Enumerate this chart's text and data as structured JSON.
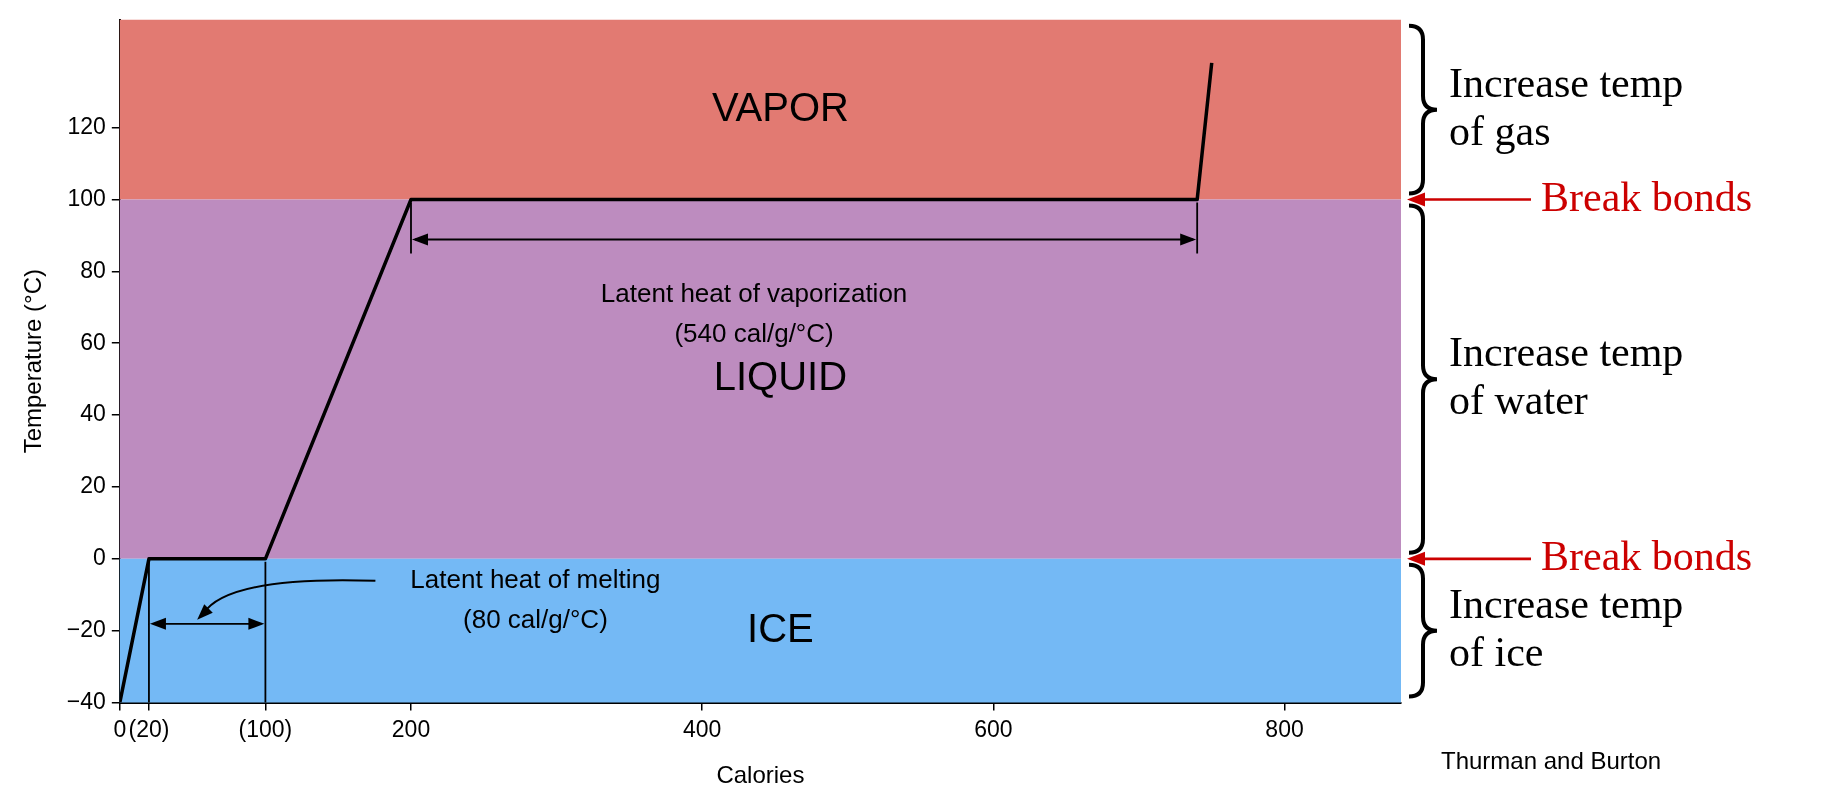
{
  "chart_data": {
    "type": "line",
    "xlabel": "Calories",
    "ylabel": "Temperature (°C)",
    "x": [
      0,
      20,
      100,
      200,
      740,
      750
    ],
    "series": [
      {
        "color": "#000000",
        "values": [
          -40,
          0,
          0,
          100,
          100,
          138
        ]
      }
    ],
    "xlim": [
      0,
      880
    ],
    "xticks": [
      0,
      {
        "value": 20,
        "label": "(20)"
      },
      {
        "value": 100,
        "label": "(100)"
      },
      200,
      400,
      600,
      800
    ],
    "ylim": [
      -40,
      150
    ],
    "yticks": [
      {
        "value": -40,
        "label": "−40"
      },
      {
        "value": -20,
        "label": "−20"
      },
      0,
      20,
      40,
      60,
      80,
      100,
      120
    ],
    "grid": false,
    "legend": false,
    "marker": "none",
    "line_style": "solid",
    "bands": [
      {
        "axis": "y",
        "from": 100,
        "to": 150,
        "label": "VAPOR",
        "color": "#e27a72"
      },
      {
        "axis": "y",
        "from": 0,
        "to": 100,
        "label": "LIQUID",
        "color": "#bd8cbf"
      },
      {
        "axis": "y",
        "from": -40,
        "to": 0,
        "label": "ICE",
        "color": "#74b9f5"
      }
    ],
    "annotations": [
      "Latent heat of vaporization\n(540 cal/g/°C)",
      "Latent heat of melting\n(80 cal/g/°C)",
      "Increase temp of gas",
      "Break bonds",
      "Increase temp of water",
      "Break bonds",
      "Increase temp of ice",
      "Thurman and Burton"
    ]
  }
}
